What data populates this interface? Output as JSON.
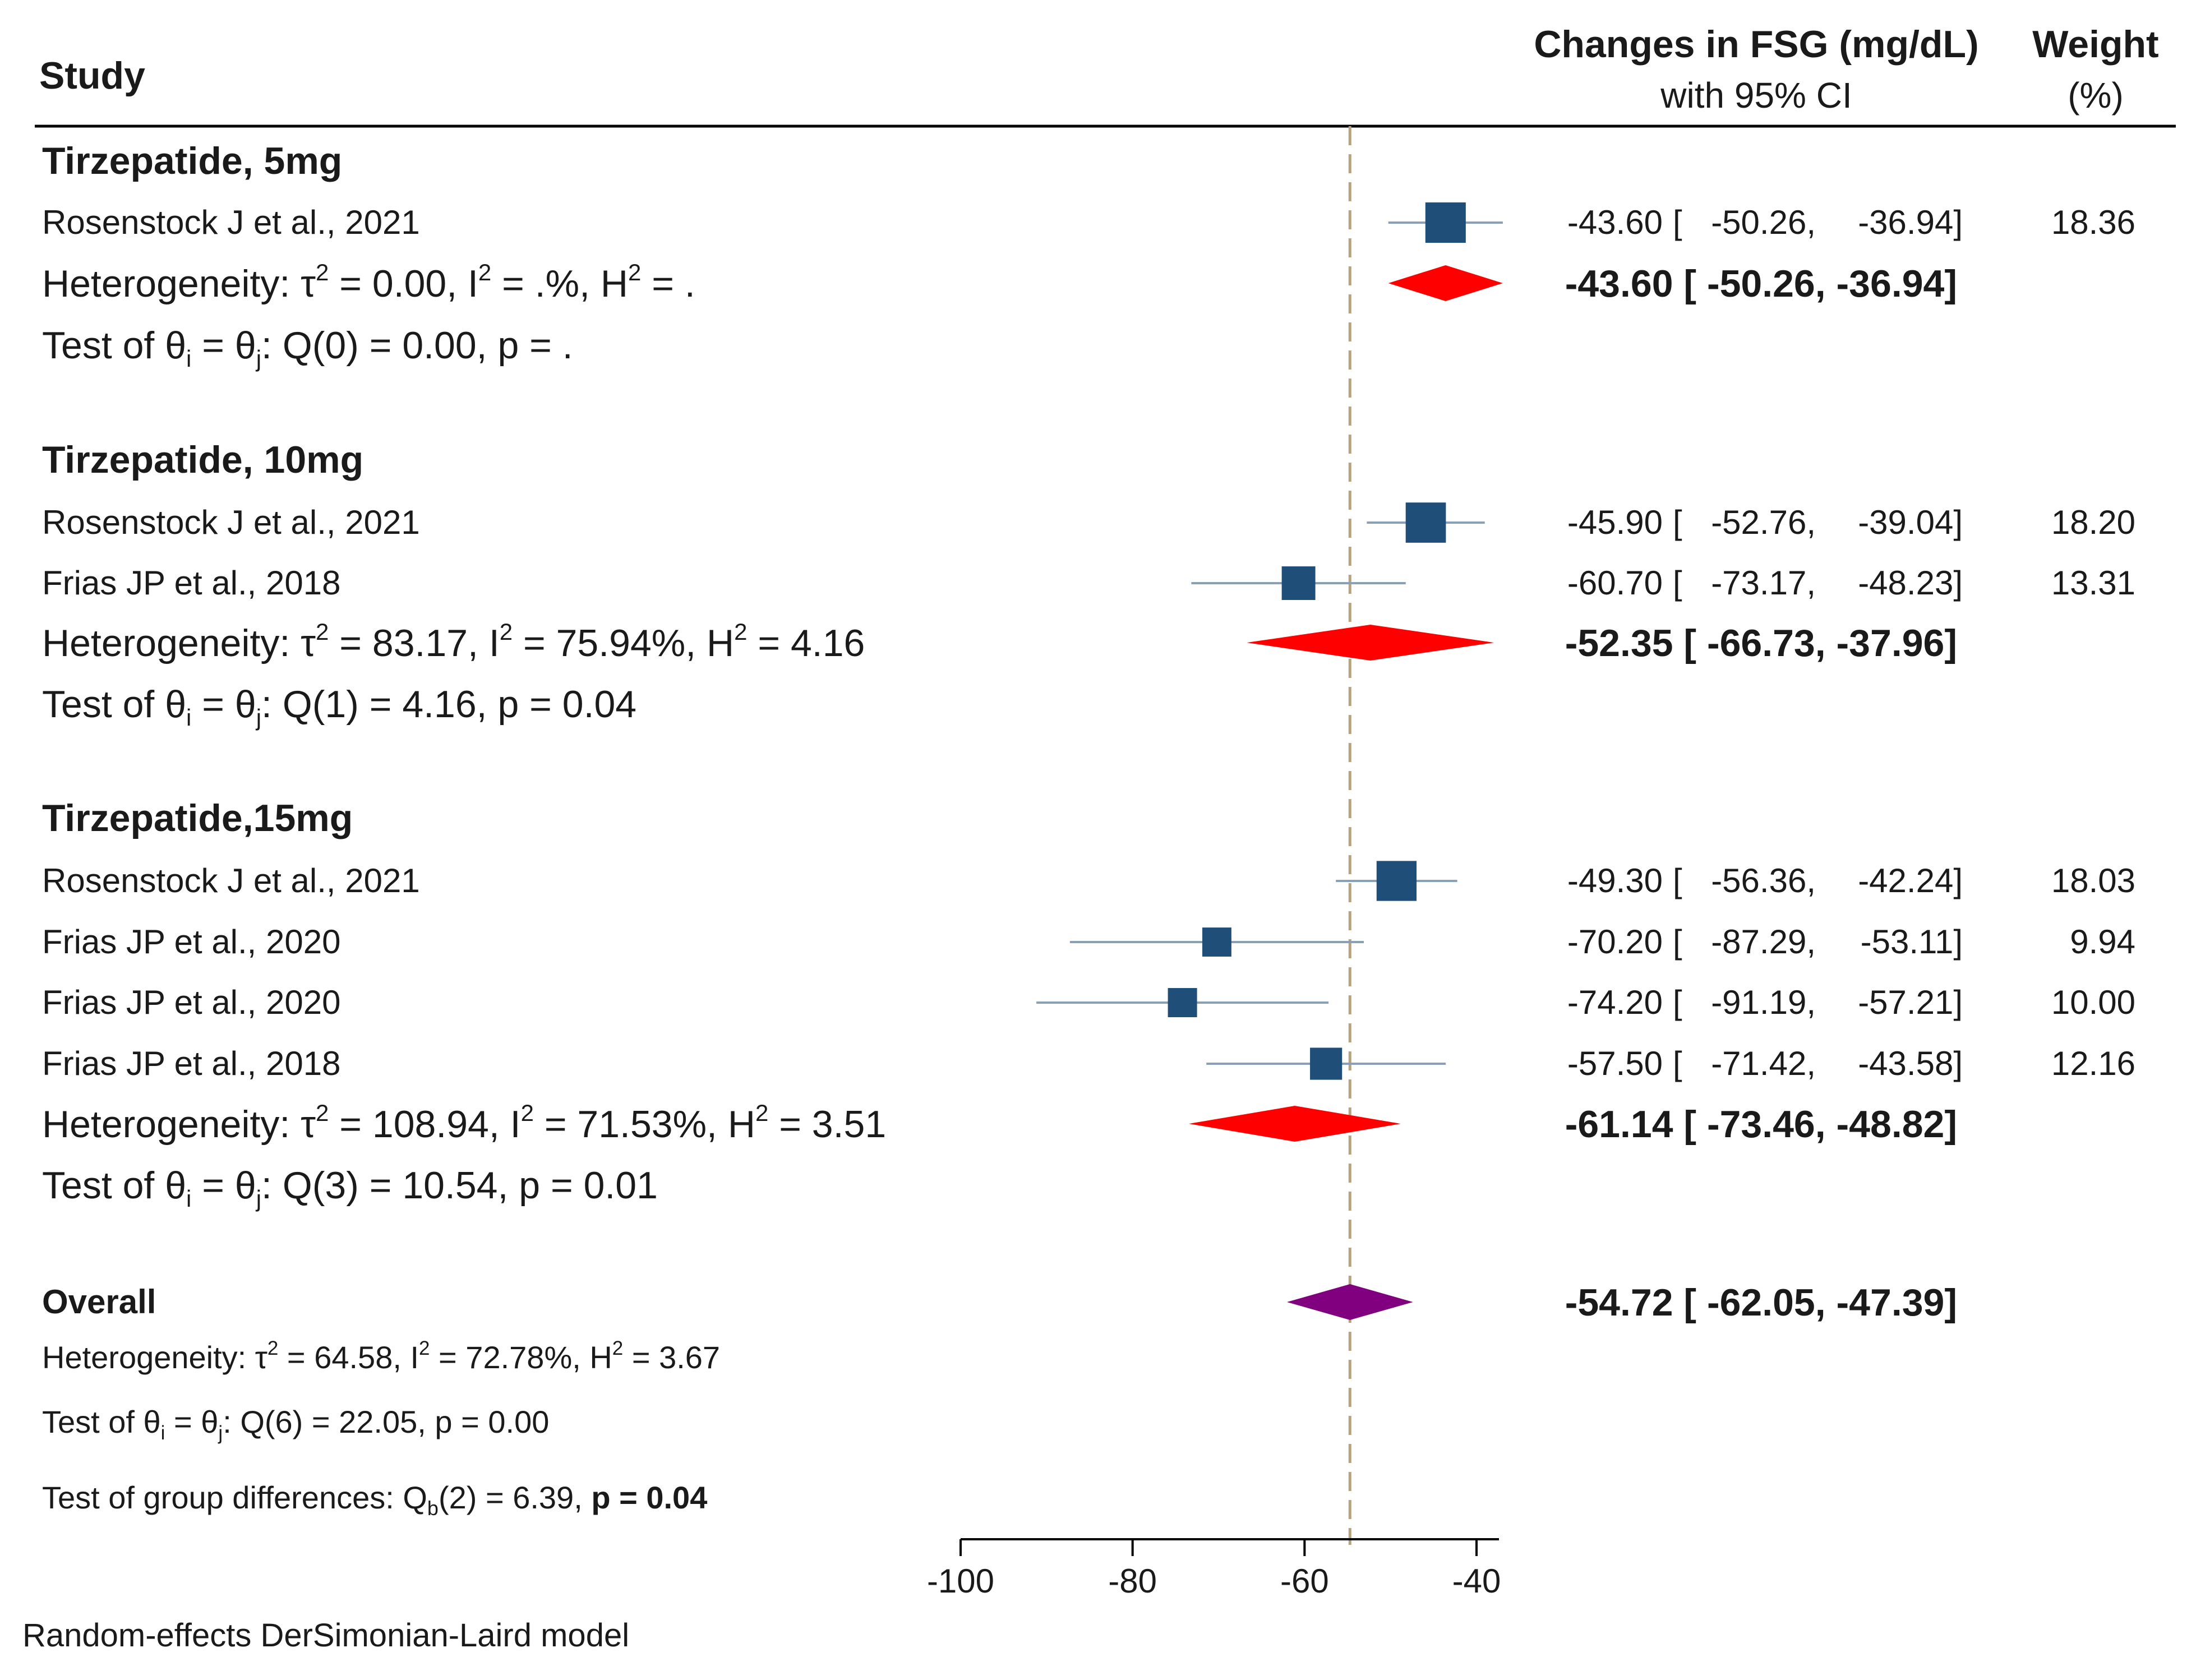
{
  "header": {
    "study": "Study",
    "effect_line1": "Changes in FSG (mg/dL)",
    "effect_line2": "with 95% CI",
    "weight_line1": "Weight",
    "weight_line2": "(%)"
  },
  "groups": [
    {
      "title": "Tirzepatide, 5mg",
      "studies": [
        {
          "label": "Rosenstock J et al.,  2021",
          "estimate": -43.6,
          "lo": -50.26,
          "hi": -36.94,
          "est_text": "-43.60",
          "lo_text": "-50.26,",
          "hi_text": "-36.94]",
          "weight": "18.36"
        }
      ],
      "summary": {
        "estimate": -43.6,
        "lo": -50.26,
        "hi": -36.94,
        "ci_text": "-43.60 [ -50.26,  -36.94]"
      },
      "het": {
        "prefix": "Heterogeneity: τ",
        "a": " = 0.00, I",
        "b": " = .%, H",
        "c": " = ."
      },
      "test": {
        "a": "Test of θ",
        "b": " = θ",
        "c": ": Q(0) = 0.00, p = ."
      }
    },
    {
      "title": "Tirzepatide, 10mg",
      "studies": [
        {
          "label": "Rosenstock J et al.,  2021",
          "estimate": -45.9,
          "lo": -52.76,
          "hi": -39.04,
          "est_text": "-45.90",
          "lo_text": "-52.76,",
          "hi_text": "-39.04]",
          "weight": "18.20"
        },
        {
          "label": "Frias JP et al., 2018",
          "estimate": -60.7,
          "lo": -73.17,
          "hi": -48.23,
          "est_text": "-60.70",
          "lo_text": "-73.17,",
          "hi_text": "-48.23]",
          "weight": "13.31"
        }
      ],
      "summary": {
        "estimate": -52.35,
        "lo": -66.73,
        "hi": -37.96,
        "ci_text": "-52.35 [ -66.73,  -37.96]"
      },
      "het": {
        "prefix": "Heterogeneity: τ",
        "a": " = 83.17, I",
        "b": " = 75.94%, H",
        "c": " = 4.16"
      },
      "test": {
        "a": "Test of θ",
        "b": " = θ",
        "c": ": Q(1) = 4.16, p = 0.04"
      }
    },
    {
      "title": "Tirzepatide,15mg",
      "studies": [
        {
          "label": "Rosenstock J et al.,  2021",
          "estimate": -49.3,
          "lo": -56.36,
          "hi": -42.24,
          "est_text": "-49.30",
          "lo_text": "-56.36,",
          "hi_text": "-42.24]",
          "weight": "18.03"
        },
        {
          "label": "Frias JP et al., 2020",
          "estimate": -70.2,
          "lo": -87.29,
          "hi": -53.11,
          "est_text": "-70.20",
          "lo_text": "-87.29,",
          "hi_text": "-53.11]",
          "weight": "9.94"
        },
        {
          "label": "Frias JP et al., 2020",
          "estimate": -74.2,
          "lo": -91.19,
          "hi": -57.21,
          "est_text": "-74.20",
          "lo_text": "-91.19,",
          "hi_text": "-57.21]",
          "weight": "10.00"
        },
        {
          "label": "Frias JP et al., 2018",
          "estimate": -57.5,
          "lo": -71.42,
          "hi": -43.58,
          "est_text": "-57.50",
          "lo_text": "-71.42,",
          "hi_text": "-43.58]",
          "weight": "12.16"
        }
      ],
      "summary": {
        "estimate": -61.14,
        "lo": -73.46,
        "hi": -48.82,
        "ci_text": "-61.14 [ -73.46,  -48.82]"
      },
      "het": {
        "prefix": "Heterogeneity: τ",
        "a": " = 108.94, I",
        "b": " = 71.53%, H",
        "c": " = 3.51"
      },
      "test": {
        "a": "Test of θ",
        "b": " = θ",
        "c": ": Q(3) = 10.54, p = 0.01"
      }
    }
  ],
  "overall": {
    "title": "Overall",
    "estimate": -54.72,
    "lo": -62.05,
    "hi": -47.39,
    "ci_text": "-54.72 [ -62.05,  -47.39]",
    "het": {
      "prefix": "Heterogeneity: τ",
      "a": " = 64.58, I",
      "b": " = 72.78%, H",
      "c": " = 3.67"
    },
    "test": {
      "a": "Test of θ",
      "b": " = θ",
      "c": ": Q(6) = 22.05, p = 0.00"
    },
    "group_diff": {
      "a": "Test of group differences: Q",
      "sub": "b",
      "b": "(2) = 6.39, ",
      "c": "p = 0.04"
    }
  },
  "footer": "Random-effects DerSimonian-Laird model",
  "sup2": "2",
  "sub_i": "i",
  "sub_j": "j",
  "colors": {
    "square": "#1f4e79",
    "ci_line": "#8aa0b8",
    "group_diamond": "#ff0000",
    "overall_diamond": "#800080",
    "ref_line": "#b8a37a",
    "text": "#1a1a1a"
  },
  "chart_data": {
    "type": "forest",
    "xlim": [
      -100,
      -40
    ],
    "xticks": [
      -100,
      -80,
      -60,
      -40
    ],
    "xtick_labels": [
      "-100",
      "-80",
      "-60",
      "-40"
    ],
    "reference_line": -54.72
  }
}
